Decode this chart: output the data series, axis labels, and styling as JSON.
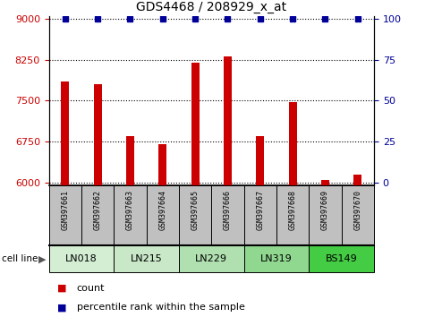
{
  "title": "GDS4468 / 208929_x_at",
  "samples": [
    "GSM397661",
    "GSM397662",
    "GSM397663",
    "GSM397664",
    "GSM397665",
    "GSM397666",
    "GSM397667",
    "GSM397668",
    "GSM397669",
    "GSM397670"
  ],
  "counts": [
    7850,
    7800,
    6850,
    6700,
    8200,
    8310,
    6850,
    7480,
    6050,
    6150
  ],
  "cell_lines": [
    {
      "label": "LN018",
      "start": 0,
      "end": 2,
      "color": "#d4eed4"
    },
    {
      "label": "LN215",
      "start": 2,
      "end": 4,
      "color": "#c8e8c8"
    },
    {
      "label": "LN229",
      "start": 4,
      "end": 6,
      "color": "#b0e0b0"
    },
    {
      "label": "LN319",
      "start": 6,
      "end": 8,
      "color": "#90d890"
    },
    {
      "label": "BS149",
      "start": 8,
      "end": 10,
      "color": "#44cc44"
    }
  ],
  "ylim_left": [
    5950,
    9050
  ],
  "ylim_right": [
    -3.28,
    100
  ],
  "yticks_left": [
    6000,
    6750,
    7500,
    8250,
    9000
  ],
  "yticks_right": [
    0,
    25,
    50,
    75,
    100
  ],
  "bar_color": "#cc0000",
  "dot_color": "#000099",
  "grid_color": "#aaaaaa",
  "sample_box_color": "#c0c0c0",
  "legend_count_color": "#cc0000",
  "legend_pct_color": "#000099",
  "title_fontsize": 10,
  "tick_fontsize": 8,
  "sample_fontsize": 6,
  "cell_fontsize": 8,
  "legend_fontsize": 8
}
